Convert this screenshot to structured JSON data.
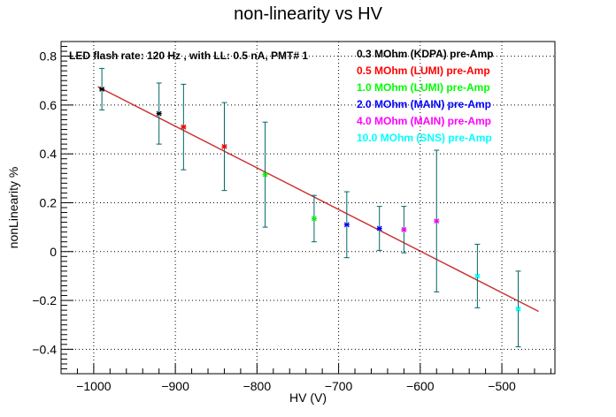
{
  "chart_data": {
    "type": "scatter",
    "title": "non-linearity vs HV",
    "xlabel": "HV (V)",
    "ylabel": "nonLinearity %",
    "xlim": [
      -1040,
      -435
    ],
    "ylim": [
      -0.5,
      0.86
    ],
    "x_ticks": [
      -1000,
      -900,
      -800,
      -700,
      -600,
      -500
    ],
    "x_tick_labels": [
      "−1000",
      "−900",
      "−800",
      "−700",
      "−600",
      "−500"
    ],
    "y_ticks": [
      -0.4,
      -0.2,
      0,
      0.2,
      0.4,
      0.6,
      0.8
    ],
    "y_tick_labels": [
      "−0.4",
      "−0.2",
      "0",
      "0.2",
      "0.4",
      "0.6",
      "0.8"
    ],
    "grid": true,
    "annotation": "LED flash rate: 120 Hz , with LL: 0.5 nA, PMT# 1",
    "legend_placement": "top-right",
    "series": [
      {
        "name": "0.3 MOhm (KDPA) pre-Amp",
        "color": "#000000",
        "x": [
          -990,
          -920
        ],
        "y": [
          0.665,
          0.565
        ],
        "err": [
          0.085,
          0.125
        ]
      },
      {
        "name": "0.5 MOhm (LUMI) pre-Amp",
        "color": "#ff0000",
        "x": [
          -890,
          -840
        ],
        "y": [
          0.51,
          0.43
        ],
        "err": [
          0.175,
          0.18
        ]
      },
      {
        "name": "1.0 MOhm (LUMI) pre-Amp",
        "color": "#00ff00",
        "x": [
          -790,
          -730
        ],
        "y": [
          0.315,
          0.135
        ],
        "err": [
          0.215,
          0.095
        ]
      },
      {
        "name": "2.0 MOhm (MAIN) pre-Amp",
        "color": "#0000ff",
        "x": [
          -690,
          -650
        ],
        "y": [
          0.11,
          0.095
        ],
        "err": [
          0.135,
          0.09
        ]
      },
      {
        "name": "4.0 MOhm (MAIN) pre-Amp",
        "color": "#ff00ff",
        "x": [
          -620,
          -580
        ],
        "y": [
          0.09,
          0.125
        ],
        "err": [
          0.095,
          0.29
        ]
      },
      {
        "name": "10.0 MOhm (SNS) pre-Amp",
        "color": "#00ffff",
        "x": [
          -530,
          -480
        ],
        "y": [
          -0.1,
          -0.235
        ],
        "err": [
          0.13,
          0.155
        ]
      }
    ],
    "error_bar_color": "#006666",
    "fit_line": {
      "color": "#cc3333",
      "x": [
        -995,
        -455
      ],
      "y": [
        0.675,
        -0.245
      ]
    }
  }
}
